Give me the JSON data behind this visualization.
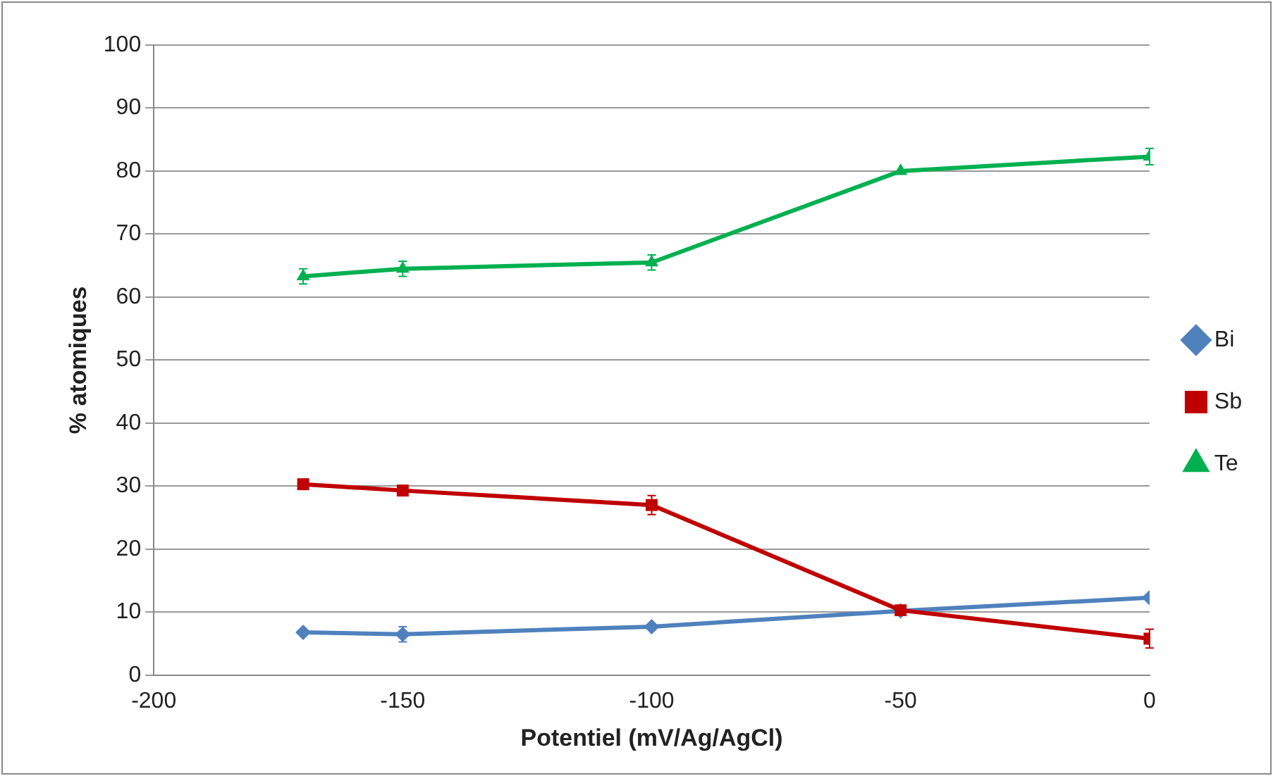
{
  "chart_data": {
    "type": "line",
    "xlabel": "Potentiel (mV/Ag/AgCl)",
    "ylabel": "% atomiques",
    "x": [
      -170,
      -150,
      -100,
      -50,
      0
    ],
    "series": [
      {
        "name": "Bi",
        "color": "#4f81bd",
        "marker": "diamond",
        "values": [
          6.8,
          6.5,
          7.7,
          10.2,
          12.3
        ],
        "errors": [
          null,
          1.2,
          null,
          null,
          null
        ]
      },
      {
        "name": "Sb",
        "color": "#c00000",
        "marker": "square",
        "values": [
          30.3,
          29.3,
          27,
          10.3,
          5.8
        ],
        "errors": [
          null,
          null,
          1.5,
          null,
          1.5
        ]
      },
      {
        "name": "Te",
        "color": "#00b050",
        "marker": "triangle",
        "values": [
          63.3,
          64.5,
          65.5,
          80,
          82.3
        ],
        "errors": [
          1.2,
          1.2,
          1.2,
          null,
          1.3
        ]
      }
    ],
    "xlim": [
      -200,
      0
    ],
    "xticks": [
      -200,
      -150,
      -100,
      -50,
      0
    ],
    "ylim": [
      0,
      100
    ],
    "yticks": [
      0,
      10,
      20,
      30,
      40,
      50,
      60,
      70,
      80,
      90,
      100
    ],
    "grid": "y",
    "legend": "right",
    "line_style": "solid"
  }
}
